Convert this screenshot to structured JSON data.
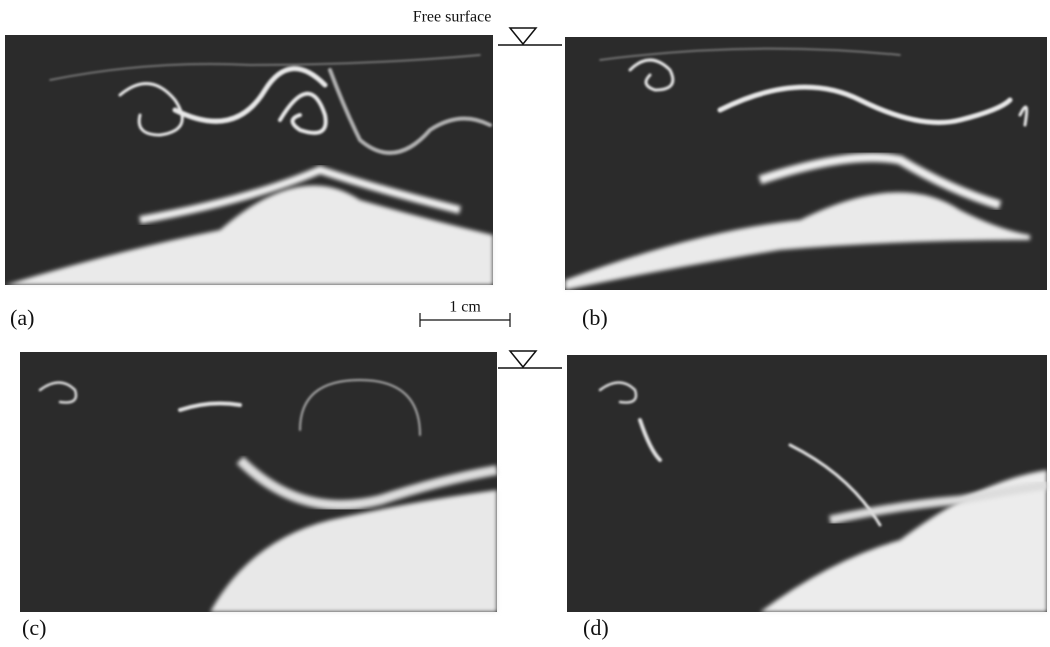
{
  "figure": {
    "free_surface_label": "Free surface",
    "scale_label": "1 cm",
    "panels": [
      {
        "label": "(a)"
      },
      {
        "label": "(b)"
      },
      {
        "label": "(c)"
      },
      {
        "label": "(d)"
      }
    ]
  }
}
